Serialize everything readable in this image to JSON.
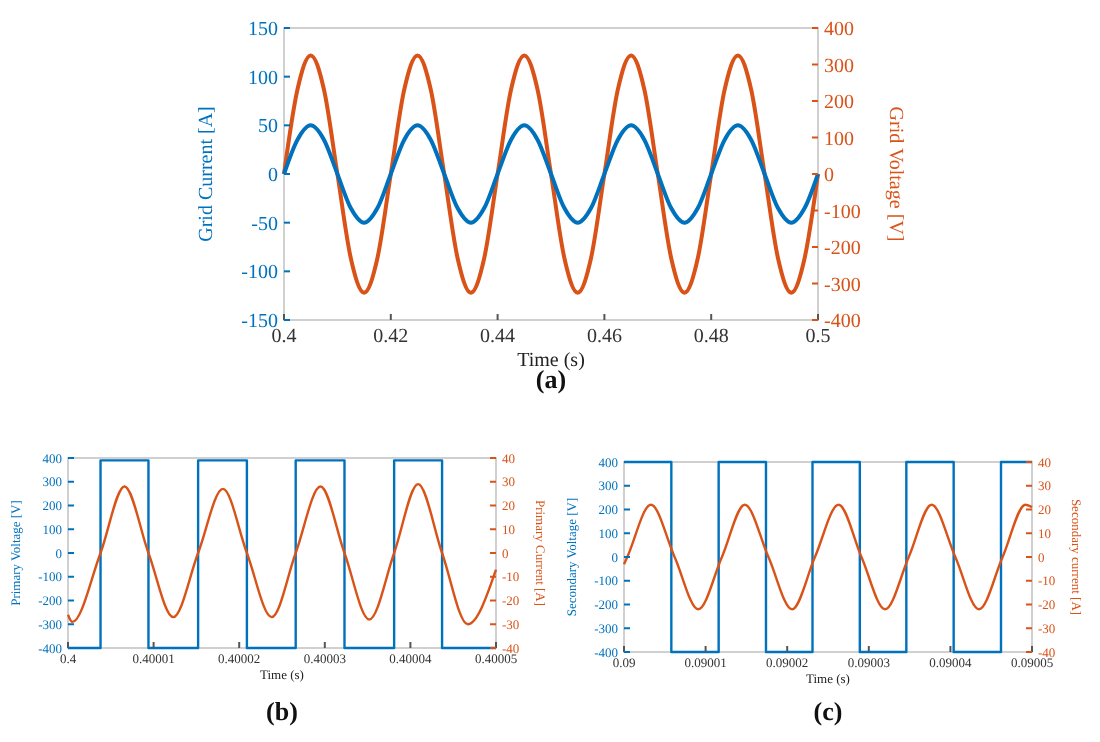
{
  "chart_data": [
    {
      "type": "line",
      "xlabel": "Time (s)",
      "ylabel": "Grid Current [A]",
      "y2label": "Grid Voltage [V]",
      "annotations": [
        "(a)"
      ],
      "xlim": [
        0.4,
        0.5
      ],
      "xticks": [
        0.4,
        0.42,
        0.44,
        0.46,
        0.48,
        0.5
      ],
      "ylim": [
        -150,
        150
      ],
      "yticks": [
        -150,
        -100,
        -50,
        0,
        50,
        100,
        150
      ],
      "y2lim": [
        -400,
        400
      ],
      "y2ticks": [
        -400,
        -300,
        -200,
        -100,
        0,
        100,
        200,
        300,
        400
      ],
      "series": [
        {
          "axis": "y2",
          "color": "#d95319",
          "x": [
            0.4,
            0.4025,
            0.405,
            0.4075,
            0.41,
            0.4125,
            0.415,
            0.4175,
            0.42,
            0.4225,
            0.425,
            0.4275,
            0.43,
            0.4325,
            0.435,
            0.4375,
            0.44,
            0.4425,
            0.445,
            0.4475,
            0.45,
            0.4525,
            0.455,
            0.4575,
            0.46,
            0.4625,
            0.465,
            0.4675,
            0.47,
            0.4725,
            0.475,
            0.4775,
            0.48,
            0.4825,
            0.485,
            0.4875,
            0.49,
            0.4925,
            0.495,
            0.4975,
            0.5
          ],
          "values": [
            0,
            230,
            325,
            230,
            0,
            -230,
            -325,
            -230,
            0,
            230,
            325,
            230,
            0,
            -230,
            -325,
            -230,
            0,
            230,
            325,
            230,
            0,
            -230,
            -325,
            -230,
            0,
            230,
            325,
            230,
            0,
            -230,
            -325,
            -230,
            0,
            230,
            325,
            230,
            0,
            -230,
            -325,
            -230,
            0
          ]
        },
        {
          "axis": "y",
          "color": "#0072bd",
          "x": [
            0.4,
            0.4025,
            0.405,
            0.4075,
            0.41,
            0.4125,
            0.415,
            0.4175,
            0.42,
            0.4225,
            0.425,
            0.4275,
            0.43,
            0.4325,
            0.435,
            0.4375,
            0.44,
            0.4425,
            0.445,
            0.4475,
            0.45,
            0.4525,
            0.455,
            0.4575,
            0.46,
            0.4625,
            0.465,
            0.4675,
            0.47,
            0.4725,
            0.475,
            0.4775,
            0.48,
            0.4825,
            0.485,
            0.4875,
            0.49,
            0.4925,
            0.495,
            0.4975,
            0.5
          ],
          "values": [
            0,
            35,
            50,
            35,
            0,
            -35,
            -50,
            -35,
            0,
            35,
            50,
            35,
            0,
            -35,
            -50,
            -35,
            0,
            35,
            50,
            35,
            0,
            -35,
            -50,
            -35,
            0,
            35,
            50,
            35,
            0,
            -35,
            -50,
            -35,
            0,
            35,
            50,
            35,
            0,
            -35,
            -50,
            -35,
            0
          ]
        }
      ]
    },
    {
      "type": "line",
      "xlabel": "Time (s)",
      "ylabel": "Primary Voltage [V]",
      "y2label": "Primary Current [A]",
      "annotations": [
        "(b)"
      ],
      "xlim": [
        0.4,
        0.40005
      ],
      "xticks": [
        0.4,
        0.40001,
        0.40002,
        0.40003,
        0.40004,
        0.40005
      ],
      "ylim": [
        -400,
        400
      ],
      "yticks": [
        -400,
        -300,
        -200,
        -100,
        0,
        100,
        200,
        300,
        400
      ],
      "y2lim": [
        -40,
        40
      ],
      "y2ticks": [
        -40,
        -30,
        -20,
        -10,
        0,
        10,
        20,
        30,
        40
      ],
      "series": [
        {
          "type": "step",
          "axis": "y",
          "color": "#0072bd",
          "x": [
            0.4,
            0.4000038,
            0.4000094,
            0.4000152,
            0.4000209,
            0.4000266,
            0.4000323,
            0.4000381,
            0.4000437,
            0.40005
          ],
          "values": [
            -400,
            390,
            -400,
            390,
            -400,
            390,
            -400,
            390,
            -400,
            -400
          ]
        },
        {
          "axis": "y2",
          "color": "#d95319",
          "x": [
            0.4,
            0.4000005,
            0.4000038,
            0.4000066,
            0.4000094,
            0.4000123,
            0.4000152,
            0.4000181,
            0.4000209,
            0.4000238,
            0.4000266,
            0.4000295,
            0.4000323,
            0.4000352,
            0.4000381,
            0.4000409,
            0.4000437,
            0.4000467,
            0.40005
          ],
          "values": [
            -26,
            -29,
            0,
            28,
            0,
            -27,
            0,
            27,
            0,
            -27,
            0,
            28,
            0,
            -28,
            0,
            29,
            0,
            -30,
            -7
          ]
        }
      ]
    },
    {
      "type": "line",
      "xlabel": "Time (s)",
      "ylabel": "Secondary Voltage [V]",
      "y2label": "Secondary current [A]",
      "annotations": [
        "(c)"
      ],
      "xlim": [
        0.09,
        0.09005
      ],
      "xticks": [
        0.09,
        0.09001,
        0.09002,
        0.09003,
        0.09004,
        0.09005
      ],
      "ylim": [
        -400,
        400
      ],
      "yticks": [
        -400,
        -300,
        -200,
        -100,
        0,
        100,
        200,
        300,
        400
      ],
      "y2lim": [
        -40,
        40
      ],
      "y2ticks": [
        -40,
        -30,
        -20,
        -10,
        0,
        10,
        20,
        30,
        40
      ],
      "series": [
        {
          "type": "step",
          "axis": "y",
          "color": "#0072bd",
          "x": [
            0.09,
            0.0900058,
            0.0900116,
            0.0900174,
            0.0900231,
            0.0900289,
            0.0900346,
            0.0900404,
            0.0900462,
            0.09005
          ],
          "values": [
            400,
            -400,
            400,
            -400,
            400,
            -400,
            400,
            -400,
            400,
            400
          ]
        },
        {
          "axis": "y2",
          "color": "#d95319",
          "x": [
            0.09,
            0.0900004,
            0.0900033,
            0.0900062,
            0.0900091,
            0.090012,
            0.0900148,
            0.0900177,
            0.0900206,
            0.0900234,
            0.0900263,
            0.0900291,
            0.090032,
            0.0900349,
            0.0900377,
            0.0900406,
            0.0900435,
            0.0900464,
            0.0900492,
            0.09005
          ],
          "values": [
            -3,
            0,
            22,
            0,
            -22,
            0,
            22,
            0,
            -22,
            0,
            22,
            0,
            -22,
            0,
            22,
            0,
            -22,
            0,
            22,
            21
          ]
        }
      ]
    }
  ]
}
